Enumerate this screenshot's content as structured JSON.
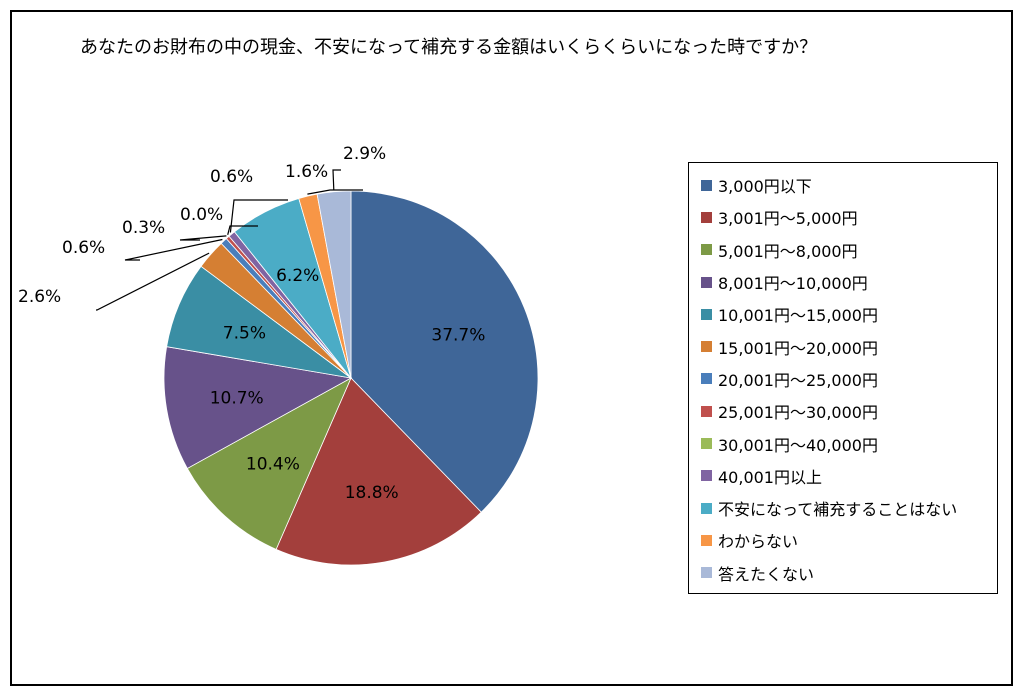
{
  "chart_data": {
    "type": "pie",
    "title": "あなたのお財布の中の現金、不安になって補充する金額はいくらくらいになった時ですか？",
    "categories": [
      "3,000円以下",
      "3,001円〜5,000円",
      "5,001円〜8,000円",
      "8,001円〜10,000円",
      "10,001円〜15,000円",
      "15,001円〜20,000円",
      "20,001円〜25,000円",
      "25,001円〜30,000円",
      "30,001円〜40,000円",
      "40,001円以上",
      "不安になって補充することはない",
      "わからない",
      "答えたくない"
    ],
    "values": [
      37.7,
      18.8,
      10.4,
      10.7,
      7.5,
      2.6,
      0.6,
      0.3,
      0.0,
      0.6,
      6.2,
      1.6,
      2.9
    ],
    "labels": [
      "37.7%",
      "18.8%",
      "10.4%",
      "10.7%",
      "7.5%",
      "2.6%",
      "0.6%",
      "0.3%",
      "0.0%",
      "0.6%",
      "6.2%",
      "1.6%",
      "2.9%"
    ],
    "colors": [
      "#3F6698",
      "#A33F3C",
      "#7D9A46",
      "#67528A",
      "#3A8EA4",
      "#D57F33",
      "#4A7EBB",
      "#C0504D",
      "#9BBB59",
      "#8064A2",
      "#4BACC6",
      "#F79646",
      "#A9B9D8"
    ],
    "legend_position": "right"
  }
}
